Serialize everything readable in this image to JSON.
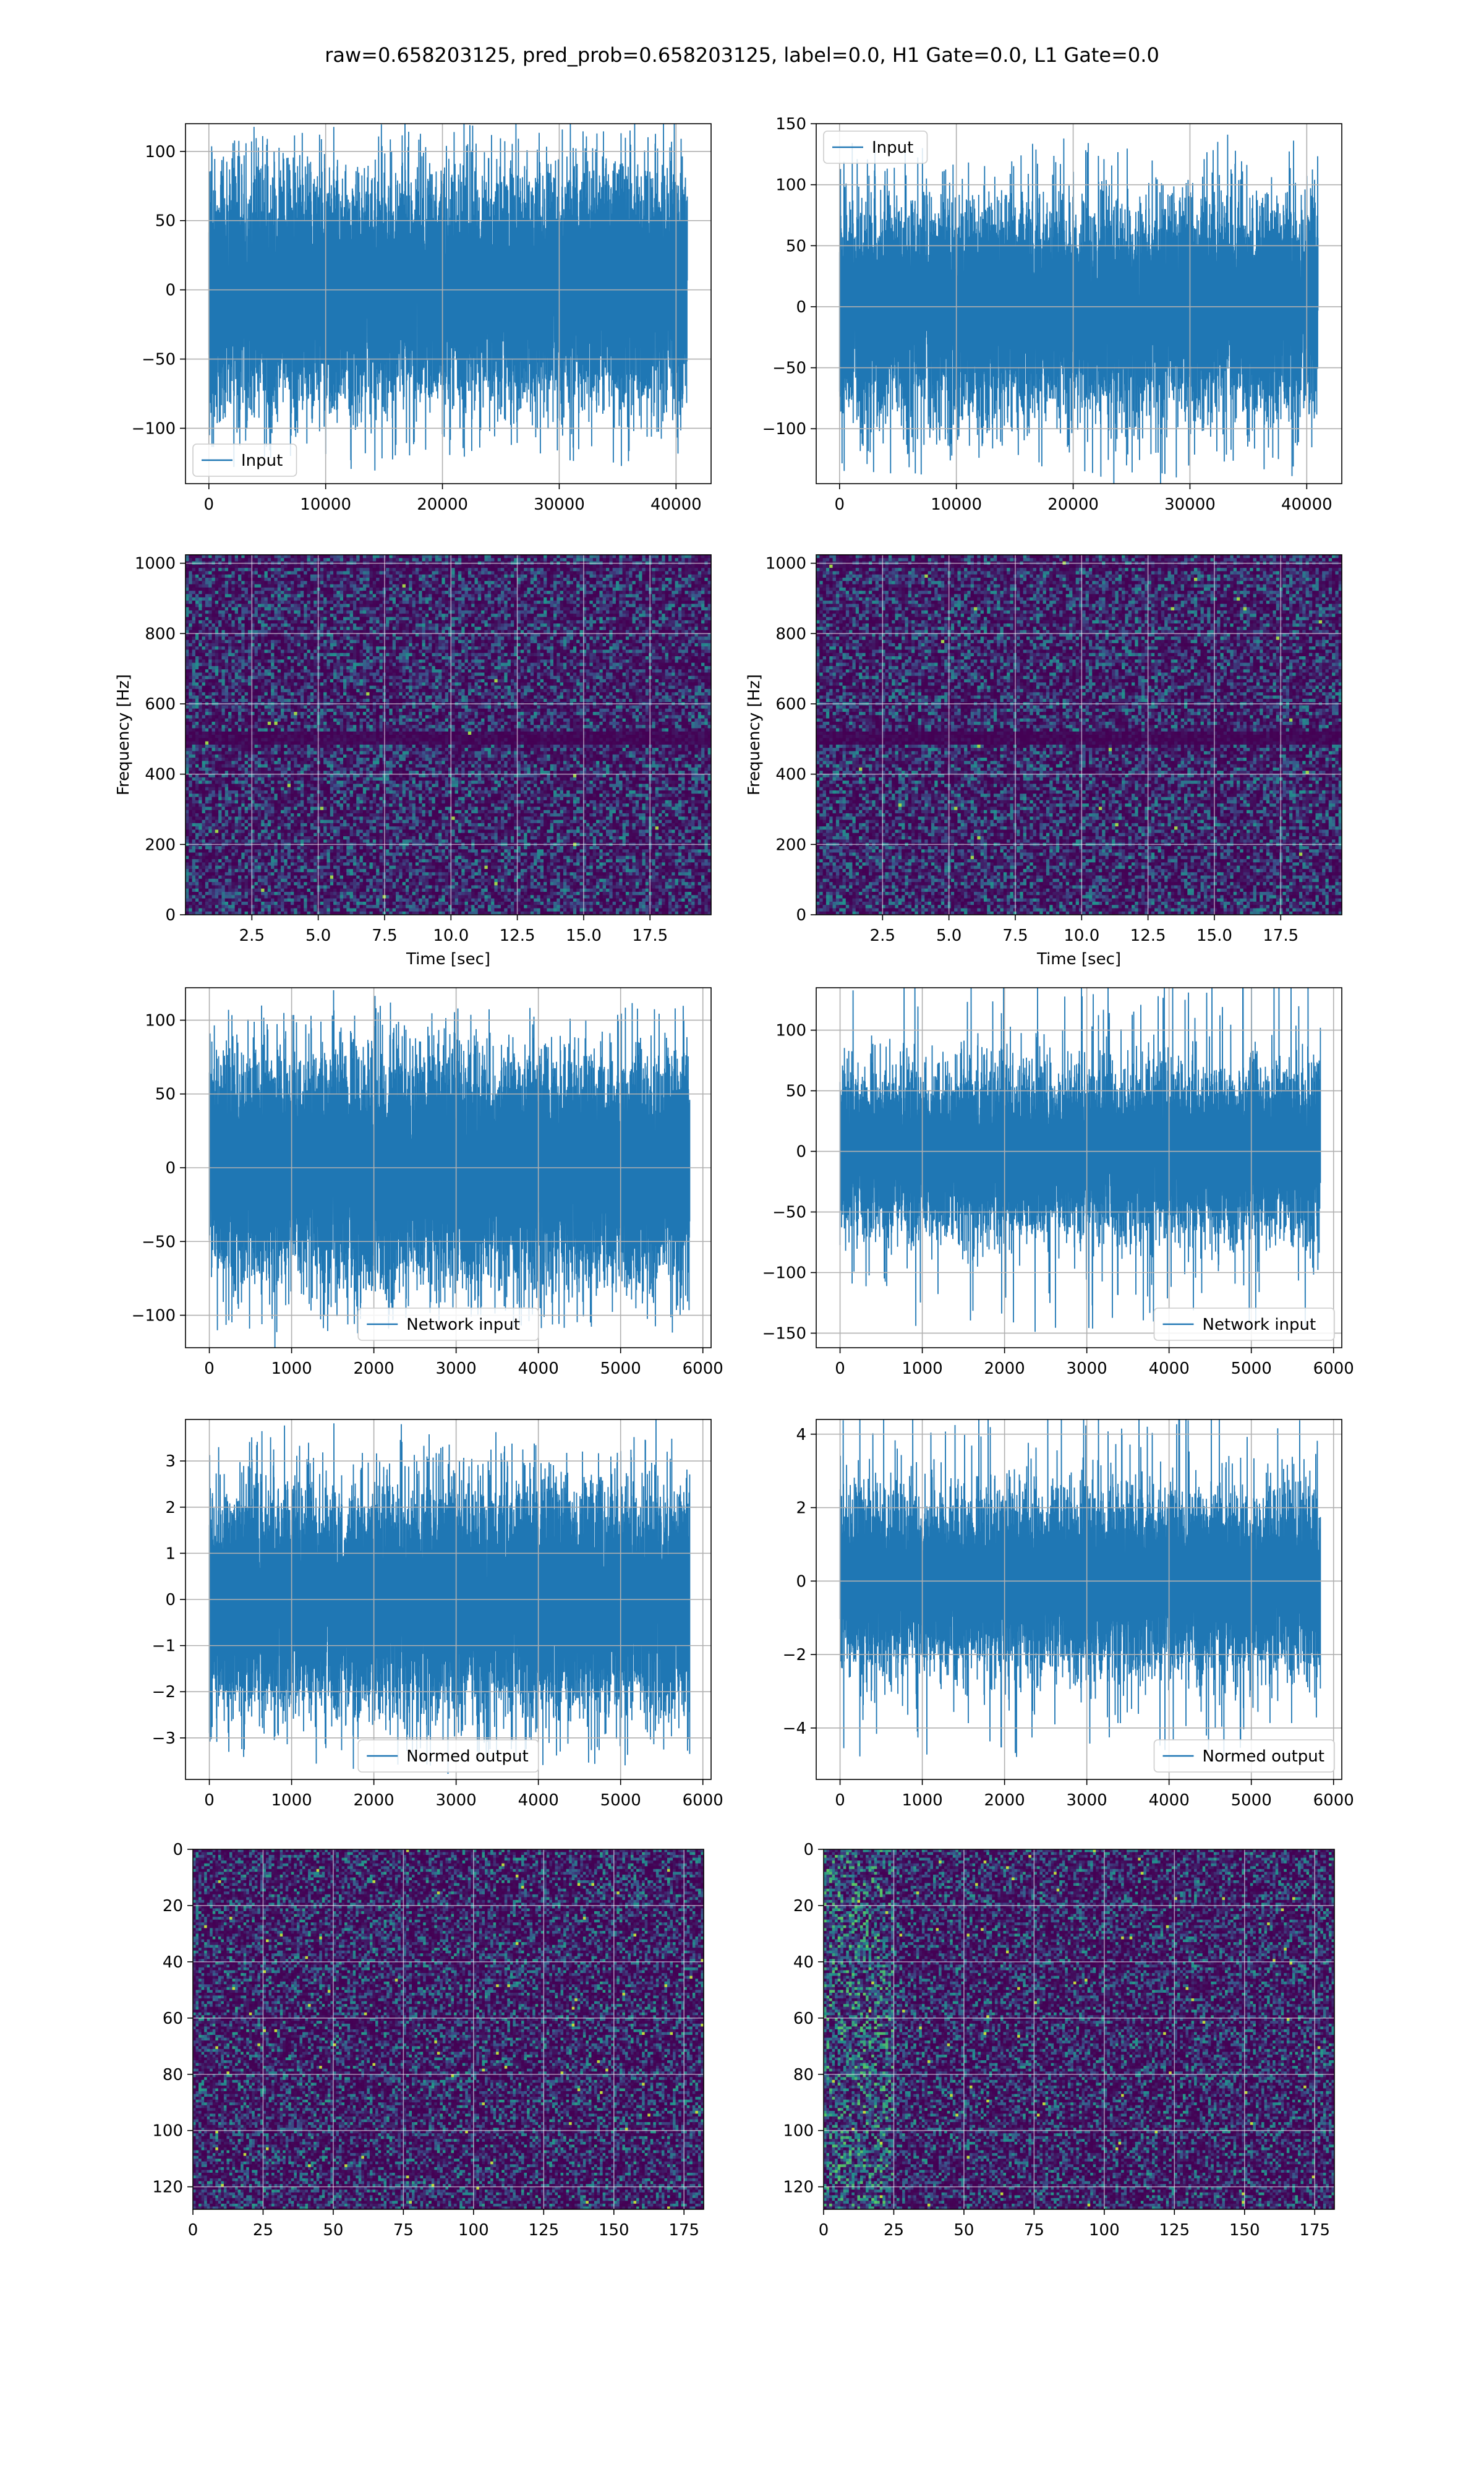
{
  "figure": {
    "suptitle": "raw=0.658203125, pred_prob=0.658203125, label=0.0, H1 Gate=0.0, L1 Gate=0.0",
    "series_color": "#1f77b4",
    "grid_color": "#b0b0b0",
    "colormap": [
      "#440154",
      "#3b528b",
      "#21918c",
      "#5ec962",
      "#fde725"
    ]
  },
  "chart_data": [
    {
      "id": "input-h1",
      "type": "line",
      "legend": "Input",
      "legend_loc": "lower-left",
      "xlim": [
        -2000,
        43000
      ],
      "ylim": [
        -140,
        120
      ],
      "xticks": [
        0,
        10000,
        20000,
        30000,
        40000
      ],
      "yticks": [
        -100,
        -50,
        0,
        50,
        100
      ],
      "x_range": [
        0,
        40960
      ],
      "envelope": 55,
      "peak": 125,
      "n_points": 40960,
      "xlabel": "",
      "ylabel": ""
    },
    {
      "id": "input-l1",
      "type": "line",
      "legend": "Input",
      "legend_loc": "top-left",
      "xlim": [
        -2000,
        43000
      ],
      "ylim": [
        -145,
        150
      ],
      "xticks": [
        0,
        10000,
        20000,
        30000,
        40000
      ],
      "yticks": [
        -100,
        -50,
        0,
        50,
        100,
        150
      ],
      "x_range": [
        0,
        40960
      ],
      "envelope": 55,
      "peak": 140,
      "n_points": 40960,
      "xlabel": "",
      "ylabel": ""
    },
    {
      "id": "spec-h1",
      "type": "heatmap",
      "xlim": [
        0,
        19.8
      ],
      "ylim": [
        0,
        1024
      ],
      "xticks": [
        2.5,
        5.0,
        7.5,
        10.0,
        12.5,
        15.0,
        17.5
      ],
      "yticks": [
        0,
        200,
        400,
        600,
        800,
        1000
      ],
      "xtick_labels": [
        "2.5",
        "5.0",
        "7.5",
        "10.0",
        "12.5",
        "15.0",
        "17.5"
      ],
      "xlabel": "Time [sec]",
      "ylabel": "Frequency [Hz]",
      "cols": 160,
      "rows": 110,
      "dark_band": [
        480,
        520
      ]
    },
    {
      "id": "spec-l1",
      "type": "heatmap",
      "xlim": [
        0,
        19.8
      ],
      "ylim": [
        0,
        1024
      ],
      "xticks": [
        2.5,
        5.0,
        7.5,
        10.0,
        12.5,
        15.0,
        17.5
      ],
      "yticks": [
        0,
        200,
        400,
        600,
        800,
        1000
      ],
      "xtick_labels": [
        "2.5",
        "5.0",
        "7.5",
        "10.0",
        "12.5",
        "15.0",
        "17.5"
      ],
      "xlabel": "Time [sec]",
      "ylabel": "Frequency [Hz]",
      "cols": 160,
      "rows": 110,
      "dark_band": [
        480,
        520
      ]
    },
    {
      "id": "netin-h1",
      "type": "line",
      "legend": "Network input",
      "legend_loc": "lower-center",
      "xlim": [
        -290,
        6100
      ],
      "ylim": [
        -122,
        122
      ],
      "xticks": [
        0,
        1000,
        2000,
        3000,
        4000,
        5000,
        6000
      ],
      "yticks": [
        -100,
        -50,
        0,
        50,
        100
      ],
      "x_range": [
        0,
        5840
      ],
      "envelope": 50,
      "peak": 112,
      "n_points": 5840,
      "xlabel": "",
      "ylabel": ""
    },
    {
      "id": "netin-l1",
      "type": "line",
      "legend": "Network input",
      "legend_loc": "lower-right",
      "xlim": [
        -290,
        6100
      ],
      "ylim": [
        -162,
        135
      ],
      "xticks": [
        0,
        1000,
        2000,
        3000,
        4000,
        5000,
        6000
      ],
      "yticks": [
        -150,
        -100,
        -50,
        0,
        50,
        100
      ],
      "x_range": [
        0,
        5840
      ],
      "envelope": 45,
      "peak": 150,
      "n_points": 5840,
      "xlabel": "",
      "ylabel": ""
    },
    {
      "id": "normed-h1",
      "type": "line",
      "legend": "Normed output",
      "legend_loc": "lower-center",
      "xlim": [
        -290,
        6100
      ],
      "ylim": [
        -3.9,
        3.9
      ],
      "xticks": [
        0,
        1000,
        2000,
        3000,
        4000,
        5000,
        6000
      ],
      "yticks": [
        -3,
        -2,
        -1,
        0,
        1,
        2,
        3
      ],
      "x_range": [
        0,
        5840
      ],
      "envelope": 1.6,
      "peak": 3.6,
      "n_points": 5840,
      "xlabel": "",
      "ylabel": ""
    },
    {
      "id": "normed-l1",
      "type": "line",
      "legend": "Normed output",
      "legend_loc": "lower-right",
      "xlim": [
        -290,
        6100
      ],
      "ylim": [
        -5.4,
        4.4
      ],
      "xticks": [
        0,
        1000,
        2000,
        3000,
        4000,
        5000,
        6000
      ],
      "yticks": [
        -4,
        -2,
        0,
        2,
        4
      ],
      "x_range": [
        0,
        5840
      ],
      "envelope": 1.6,
      "peak": 4.8,
      "n_points": 5840,
      "xlabel": "",
      "ylabel": ""
    },
    {
      "id": "image-h1",
      "type": "heatmap",
      "origin": "upper",
      "xlim": [
        0,
        182
      ],
      "ylim": [
        128,
        0
      ],
      "xticks": [
        0,
        25,
        50,
        75,
        100,
        125,
        150,
        175
      ],
      "yticks": [
        0,
        20,
        40,
        60,
        80,
        100,
        120
      ],
      "xlabel": "",
      "ylabel": "",
      "cols": 182,
      "rows": 128,
      "left_bright_cols": 0
    },
    {
      "id": "image-l1",
      "type": "heatmap",
      "origin": "upper",
      "xlim": [
        0,
        182
      ],
      "ylim": [
        128,
        0
      ],
      "xticks": [
        0,
        25,
        50,
        75,
        100,
        125,
        150,
        175
      ],
      "yticks": [
        0,
        20,
        40,
        60,
        80,
        100,
        120
      ],
      "xlabel": "",
      "ylabel": "",
      "cols": 182,
      "rows": 128,
      "left_bright_cols": 25
    }
  ]
}
